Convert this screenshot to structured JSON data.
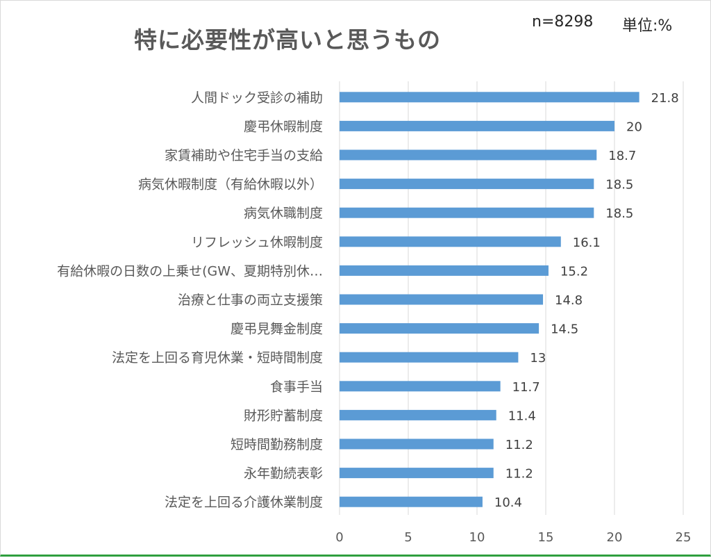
{
  "header": {
    "title": "特に必要性が高いと思うもの",
    "sample_size": "n=8298",
    "unit": "単位:%"
  },
  "chart_data": {
    "type": "bar",
    "orientation": "horizontal",
    "title": "特に必要性が高いと思うもの",
    "categories": [
      "人間ドック受診の補助",
      "慶弔休暇制度",
      "家賃補助や住宅手当の支給",
      "病気休暇制度（有給休暇以外）",
      "病気休職制度",
      "リフレッシュ休暇制度",
      "有給休暇の日数の上乗せ(GW、夏期特別休…",
      "治療と仕事の両立支援策",
      "慶弔見舞金制度",
      "法定を上回る育児休業・短時間制度",
      "食事手当",
      "財形貯蓄制度",
      "短時間勤務制度",
      "永年勤続表彰",
      "法定を上回る介護休業制度"
    ],
    "values": [
      21.8,
      20,
      18.7,
      18.5,
      18.5,
      16.1,
      15.2,
      14.8,
      14.5,
      13,
      11.7,
      11.4,
      11.2,
      11.2,
      10.4
    ],
    "value_labels": [
      "21.8",
      "20",
      "18.7",
      "18.5",
      "18.5",
      "16.1",
      "15.2",
      "14.8",
      "14.5",
      "13",
      "11.7",
      "11.4",
      "11.2",
      "11.2",
      "10.4"
    ],
    "xlim": [
      0,
      25
    ],
    "xticks": [
      "0",
      "5",
      "10",
      "15",
      "20",
      "25"
    ],
    "grid": true,
    "legend": "none",
    "bar_color": "#5b9bd5",
    "grid_color": "#d9d9d9"
  }
}
